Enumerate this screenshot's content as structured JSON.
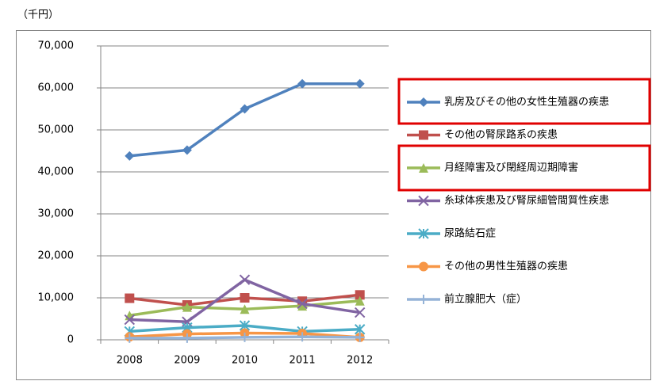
{
  "chart_data": {
    "type": "line",
    "unit_label": "（千円）",
    "categories": [
      "2008",
      "2009",
      "2010",
      "2011",
      "2012"
    ],
    "ylim": [
      0,
      70000
    ],
    "yticks": [
      0,
      {
        "value": 10000,
        "label": "10,000"
      },
      {
        "value": 20000,
        "label": "20,000"
      },
      {
        "value": 30000,
        "label": "30,000"
      },
      {
        "value": 40000,
        "label": "40,000"
      },
      {
        "value": 50000,
        "label": "50,000"
      },
      {
        "value": 60000,
        "label": "60,000"
      },
      {
        "value": 70000,
        "label": "70,000"
      }
    ],
    "grid": true,
    "series": [
      {
        "name": "乳房及びその他の女性生殖器の疾患",
        "color": "#4f81bd",
        "marker": "diamond",
        "values": [
          43800,
          45200,
          55000,
          61000,
          61000
        ]
      },
      {
        "name": "その他の腎尿路系の疾患",
        "color": "#c0504d",
        "marker": "square",
        "values": [
          9900,
          8300,
          10000,
          9200,
          10700
        ]
      },
      {
        "name": "月経障害及び閉経周辺期障害",
        "color": "#9bbb59",
        "marker": "triangle",
        "values": [
          5800,
          7800,
          7300,
          8100,
          9300
        ]
      },
      {
        "name": "糸球体疾患及び腎尿細管間質性疾患",
        "color": "#8064a2",
        "marker": "x",
        "values": [
          4800,
          4300,
          14300,
          8600,
          6500
        ]
      },
      {
        "name": "尿路結石症",
        "color": "#4bacc6",
        "marker": "star",
        "values": [
          2000,
          2900,
          3400,
          2000,
          2500
        ]
      },
      {
        "name": "その他の男性生殖器の疾患",
        "color": "#f79646",
        "marker": "circle",
        "values": [
          700,
          1400,
          1600,
          1500,
          600
        ]
      },
      {
        "name": "前立腺肥大（症）",
        "color": "#95b3d7",
        "marker": "plus",
        "values": [
          400,
          400,
          600,
          700,
          600
        ]
      }
    ]
  }
}
